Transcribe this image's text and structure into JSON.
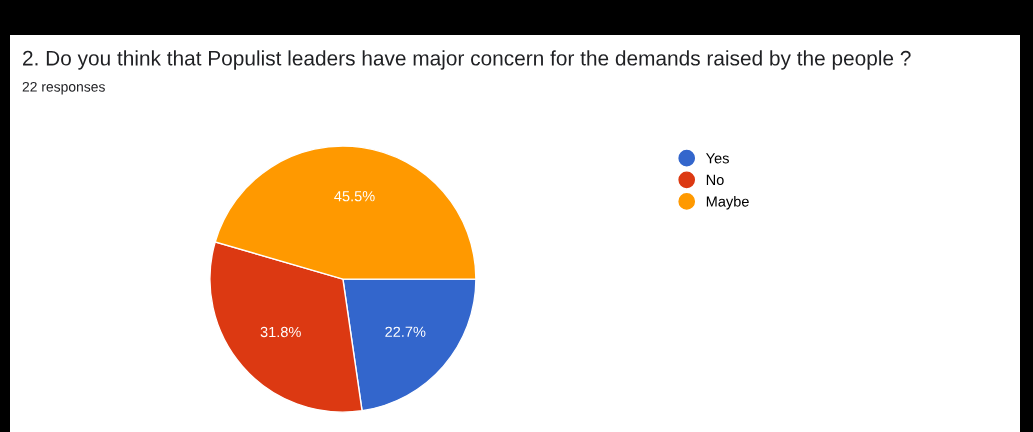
{
  "chart_data": {
    "type": "pie",
    "title": "2. Do you think that Populist leaders have major concern for the demands raised by the people ?",
    "subtitle": "22 responses",
    "categories": [
      "Yes",
      "No",
      "Maybe"
    ],
    "values": [
      22.7,
      31.8,
      45.5
    ],
    "colors": [
      "#3366cc",
      "#dc3912",
      "#ff9900"
    ],
    "value_labels": [
      "22.7%",
      "31.8%",
      "45.5%"
    ],
    "legend": "right"
  }
}
